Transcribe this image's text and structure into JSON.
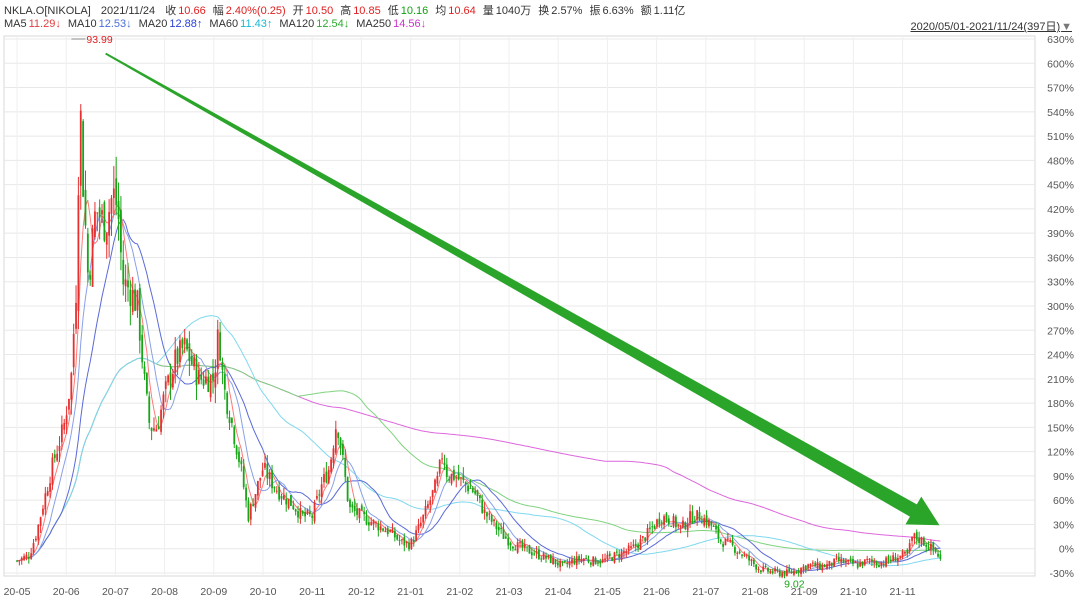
{
  "header": {
    "ticker": "NKLA.O[NIKOLA]",
    "date": "2021/11/24",
    "quote": [
      {
        "label": "收",
        "value": "10.66",
        "color": "#e02020"
      },
      {
        "label": "幅",
        "value": "2.40%(0.25)",
        "color": "#e02020"
      },
      {
        "label": "开",
        "value": "10.50",
        "color": "#e02020"
      },
      {
        "label": "高",
        "value": "10.85",
        "color": "#e02020"
      },
      {
        "label": "低",
        "value": "10.16",
        "color": "#11a011"
      },
      {
        "label": "均",
        "value": "10.64",
        "color": "#e02020"
      },
      {
        "label": "量",
        "value": "1040万",
        "color": "#333333"
      },
      {
        "label": "换",
        "value": "2.57%",
        "color": "#333333"
      },
      {
        "label": "振",
        "value": "6.63%",
        "color": "#333333"
      },
      {
        "label": "额",
        "value": "1.11亿",
        "color": "#333333"
      }
    ],
    "ma": [
      {
        "label": "MA5",
        "value": "11.29↓",
        "color": "#e04040"
      },
      {
        "label": "MA10",
        "value": "12.53↓",
        "color": "#4a6fd8"
      },
      {
        "label": "MA20",
        "value": "12.88↑",
        "color": "#2a3fd8"
      },
      {
        "label": "MA60",
        "value": "11.43↑",
        "color": "#19b8d6"
      },
      {
        "label": "MA120",
        "value": "12.54↓",
        "color": "#2faa2f"
      },
      {
        "label": "MA250",
        "value": "14.56↓",
        "color": "#cc33cc"
      }
    ],
    "range": "2020/05/01-2021/11/24(397日)"
  },
  "colors": {
    "up": "#e63030",
    "down": "#16a616",
    "ma5": "#ff7a7a",
    "ma10": "#8aa0e8",
    "ma20": "#5a6ad8",
    "ma60": "#7fd8ee",
    "ma120": "#7fd27f",
    "ma250": "#dd66dd",
    "arrow": "#2aa52a",
    "grid": "#e8e8e8",
    "axis": "#555555"
  },
  "chart_data": {
    "type": "candlestick",
    "x_ticks": [
      "20-05",
      "20-06",
      "20-07",
      "20-08",
      "20-09",
      "20-10",
      "20-11",
      "20-12",
      "21-01",
      "21-02",
      "21-03",
      "21-04",
      "21-05",
      "21-06",
      "21-07",
      "21-08",
      "21-09",
      "21-10",
      "21-11"
    ],
    "y_ticks": [
      "630%",
      "600%",
      "570%",
      "540%",
      "510%",
      "480%",
      "450%",
      "420%",
      "390%",
      "360%",
      "330%",
      "300%",
      "270%",
      "240%",
      "210%",
      "180%",
      "150%",
      "120%",
      "90%",
      "60%",
      "30%",
      "0%",
      "-30%"
    ],
    "y_range_pct": [
      -30,
      630
    ],
    "annotations": [
      {
        "label": "93.99",
        "month": 1.35,
        "pct": 630,
        "color": "#e02020"
      },
      {
        "label": "9.02",
        "month": 15.8,
        "pct": -33,
        "color": "#16a616"
      }
    ],
    "trend_arrow": {
      "from": {
        "month": 1.8,
        "pct": 612
      },
      "to": {
        "month": 18.75,
        "pct": 29
      }
    },
    "close_path": [
      [
        0.0,
        -15
      ],
      [
        0.25,
        -8
      ],
      [
        0.4,
        20
      ],
      [
        0.55,
        60
      ],
      [
        0.75,
        110
      ],
      [
        0.95,
        150
      ],
      [
        1.1,
        210
      ],
      [
        1.2,
        320
      ],
      [
        1.28,
        560
      ],
      [
        1.33,
        470
      ],
      [
        1.45,
        330
      ],
      [
        1.6,
        420
      ],
      [
        1.8,
        400
      ],
      [
        1.95,
        440
      ],
      [
        2.05,
        420
      ],
      [
        2.15,
        330
      ],
      [
        2.3,
        320
      ],
      [
        2.45,
        300
      ],
      [
        2.6,
        200
      ],
      [
        2.7,
        150
      ],
      [
        2.85,
        150
      ],
      [
        3.0,
        190
      ],
      [
        3.2,
        230
      ],
      [
        3.4,
        250
      ],
      [
        3.55,
        230
      ],
      [
        3.7,
        210
      ],
      [
        3.85,
        210
      ],
      [
        4.0,
        210
      ],
      [
        4.1,
        270
      ],
      [
        4.2,
        200
      ],
      [
        4.35,
        160
      ],
      [
        4.55,
        100
      ],
      [
        4.7,
        40
      ],
      [
        4.85,
        70
      ],
      [
        5.0,
        100
      ],
      [
        5.2,
        80
      ],
      [
        5.4,
        65
      ],
      [
        5.6,
        55
      ],
      [
        5.8,
        40
      ],
      [
        6.0,
        40
      ],
      [
        6.2,
        80
      ],
      [
        6.35,
        100
      ],
      [
        6.5,
        160
      ],
      [
        6.62,
        110
      ],
      [
        6.75,
        50
      ],
      [
        7.0,
        40
      ],
      [
        7.3,
        30
      ],
      [
        7.6,
        20
      ],
      [
        7.8,
        8
      ],
      [
        8.0,
        5
      ],
      [
        8.2,
        30
      ],
      [
        8.4,
        60
      ],
      [
        8.55,
        85
      ],
      [
        8.65,
        120
      ],
      [
        8.75,
        90
      ],
      [
        8.9,
        90
      ],
      [
        9.1,
        80
      ],
      [
        9.3,
        70
      ],
      [
        9.5,
        45
      ],
      [
        9.7,
        30
      ],
      [
        9.9,
        15
      ],
      [
        10.1,
        5
      ],
      [
        10.3,
        0
      ],
      [
        10.5,
        -5
      ],
      [
        10.7,
        -10
      ],
      [
        10.9,
        -15
      ],
      [
        11.1,
        -22
      ],
      [
        11.3,
        -15
      ],
      [
        11.5,
        -12
      ],
      [
        11.7,
        -15
      ],
      [
        11.9,
        -15
      ],
      [
        12.1,
        -10
      ],
      [
        12.3,
        -5
      ],
      [
        12.5,
        0
      ],
      [
        12.7,
        10
      ],
      [
        12.9,
        25
      ],
      [
        13.1,
        40
      ],
      [
        13.3,
        35
      ],
      [
        13.5,
        25
      ],
      [
        13.7,
        40
      ],
      [
        13.9,
        40
      ],
      [
        14.1,
        30
      ],
      [
        14.3,
        10
      ],
      [
        14.5,
        5
      ],
      [
        14.7,
        -5
      ],
      [
        14.9,
        -15
      ],
      [
        15.1,
        -25
      ],
      [
        15.3,
        -28
      ],
      [
        15.5,
        -30
      ],
      [
        15.7,
        -30
      ],
      [
        15.9,
        -25
      ],
      [
        16.1,
        -20
      ],
      [
        16.3,
        -22
      ],
      [
        16.5,
        -20
      ],
      [
        16.7,
        -15
      ],
      [
        16.9,
        -18
      ],
      [
        17.1,
        -20
      ],
      [
        17.3,
        -15
      ],
      [
        17.5,
        -18
      ],
      [
        17.7,
        -15
      ],
      [
        17.9,
        -10
      ],
      [
        18.1,
        -8
      ],
      [
        18.2,
        15
      ],
      [
        18.4,
        10
      ],
      [
        18.55,
        2
      ],
      [
        18.7,
        -5
      ],
      [
        18.8,
        -18
      ]
    ]
  }
}
